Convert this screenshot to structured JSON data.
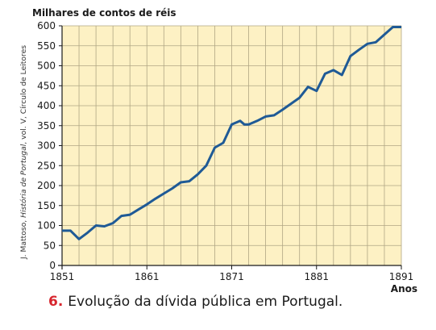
{
  "chart_data": {
    "type": "line",
    "title": "Evolução da dívida pública em Portugal.",
    "figure_number": "6.",
    "ylabel": "Milhares de contos de réis",
    "xlabel": "Anos",
    "source": "J. Mattoso, História de Portugal, vol. V, Círculo de Leitores",
    "xlim": [
      1851,
      1891
    ],
    "ylim": [
      0,
      600
    ],
    "x_ticks": [
      1851,
      1861,
      1871,
      1881,
      1891
    ],
    "y_ticks": [
      0,
      50,
      100,
      150,
      200,
      250,
      300,
      350,
      400,
      450,
      500,
      550,
      600
    ],
    "grid": true,
    "colors": {
      "line": "#1f5a96",
      "plot_background": "#fdf1c4",
      "grid": "#b0a684",
      "caption_number": "#d7262e"
    },
    "series": [
      {
        "x": [
          1851,
          1852,
          1853,
          1854,
          1855,
          1856,
          1857,
          1858,
          1859,
          1860,
          1861,
          1862,
          1863,
          1864,
          1865,
          1866,
          1867,
          1868,
          1869,
          1870,
          1871,
          1872,
          1872.5,
          1873,
          1874,
          1875,
          1876,
          1877,
          1878,
          1879,
          1880,
          1881,
          1882,
          1883,
          1884,
          1885,
          1886,
          1887,
          1888,
          1889,
          1890,
          1891
        ],
        "y": [
          87,
          87,
          66,
          82,
          100,
          98,
          106,
          124,
          127,
          140,
          153,
          167,
          180,
          193,
          208,
          211,
          228,
          250,
          295,
          307,
          353,
          362,
          353,
          353,
          362,
          373,
          376,
          390,
          405,
          420,
          447,
          437,
          480,
          489,
          477,
          524,
          540,
          555,
          559,
          578,
          597,
          597
        ]
      }
    ]
  }
}
